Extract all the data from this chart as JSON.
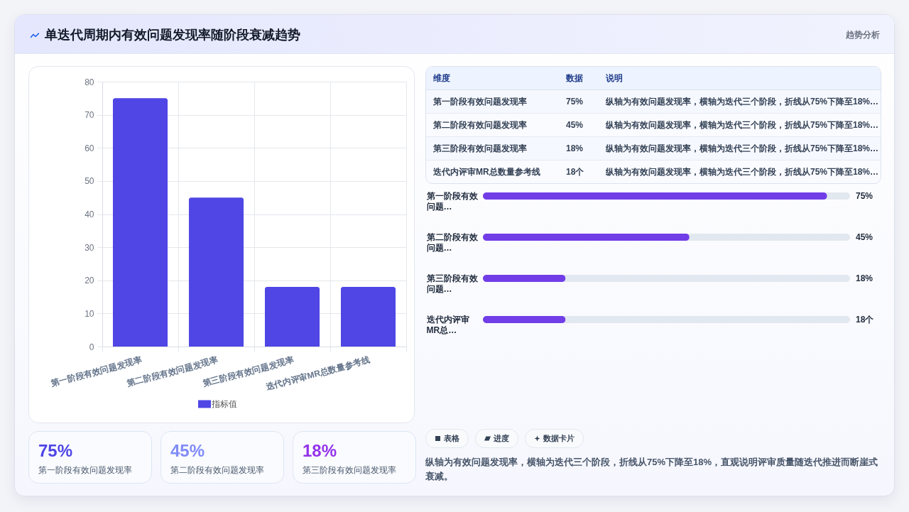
{
  "chart_data": [
    {
      "type": "other",
      "title": "单迭代周期内有效问题发现率随阶段衰减趋势",
      "annotations": [
        "趋势分析"
      ]
    },
    {
      "type": "bar",
      "categories": [
        "第一阶段有效问题发现率",
        "第二阶段有效问题发现率",
        "第三阶段有效问题发现率",
        "迭代内评审MR总数量参考线"
      ],
      "series": [
        {
          "name": "指标值",
          "color": "#4f46e5",
          "values": [
            75,
            45,
            18,
            18
          ]
        }
      ],
      "ylim": [
        0,
        80
      ],
      "yticks": [
        0,
        10,
        20,
        30,
        40,
        50,
        60,
        70,
        80
      ],
      "grid": true,
      "legend": "bottom"
    },
    {
      "type": "other",
      "annotations": [
        "维度",
        "数据",
        "说明",
        "第一阶段有效问题发现率",
        "75%",
        "纵轴为有效问题发现率，横轴为迭代三个阶段，折线从75%下降至18%…",
        "第二阶段有效问题发现率",
        "45%",
        "纵轴为有效问题发现率，横轴为迭代三个阶段，折线从75%下降至18%…",
        "第三阶段有效问题发现率",
        "18%",
        "纵轴为有效问题发现率，横轴为迭代三个阶段，折线从75%下降至18%…",
        "迭代内评审MR总数量参考线",
        "18个",
        "纵轴为有效问题发现率，横轴为迭代三个阶段，折线从75%下降至18%…"
      ]
    },
    {
      "type": "bar",
      "orientation": "horizontal",
      "categories": [
        "第一阶段有效问题…",
        "第二阶段有效问题…",
        "第三阶段有效问题…",
        "迭代内评审MR总…"
      ],
      "values": [
        75,
        45,
        18,
        18
      ],
      "color": "#713de7",
      "value_labels": [
        "75%",
        "45%",
        "18%",
        "18个"
      ],
      "tick_labels": "y"
    },
    {
      "type": "other",
      "annotations": [
        "75%",
        "第一阶段有效问题发现率",
        "45%",
        "第二阶段有效问题发现率",
        "18%",
        "第三阶段有效问题发现率"
      ],
      "colors": [
        "#4f46e5",
        "#818cf8",
        "#9333ea"
      ]
    },
    {
      "type": "other",
      "annotations": [
        "表格",
        "进度",
        "数据卡片"
      ]
    },
    {
      "type": "other",
      "annotations": [
        "纵轴为有效问题发现率，横轴为迭代三个阶段，折线从75%下降至18%，直观说明评审质量随迭代推进而断崖式衰减。"
      ]
    }
  ]
}
